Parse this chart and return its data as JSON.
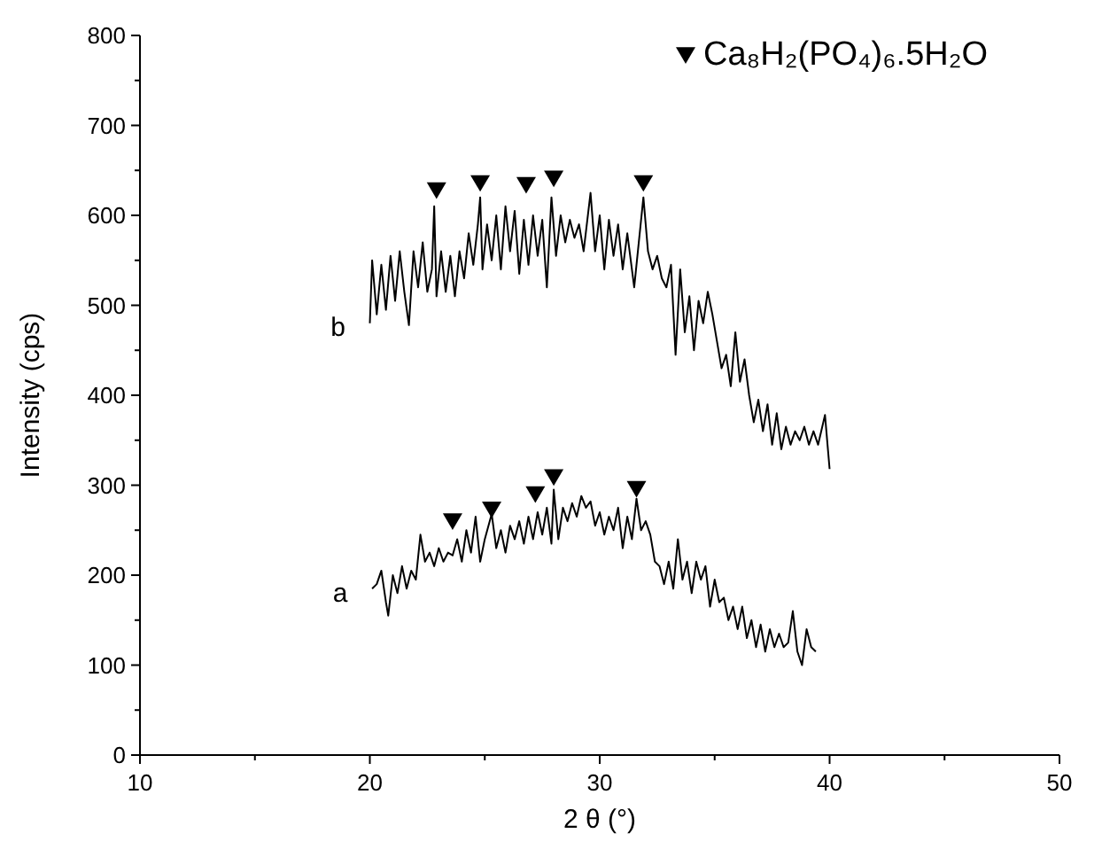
{
  "chart_data": {
    "type": "line",
    "xlabel": "2 θ (°)",
    "ylabel": "Intensity (cps)",
    "xlim": [
      10,
      50
    ],
    "ylim": [
      0,
      800
    ],
    "xticks": [
      10,
      {
        "value": 15,
        "label": null
      },
      20,
      {
        "value": 25,
        "label": null
      },
      30,
      {
        "value": 35,
        "label": null
      },
      40,
      {
        "value": 45,
        "label": null
      },
      50
    ],
    "yticks": [
      0,
      {
        "value": 50,
        "label": null
      },
      100,
      {
        "value": 150,
        "label": null
      },
      200,
      {
        "value": 250,
        "label": null
      },
      300,
      {
        "value": 350,
        "label": null
      },
      400,
      {
        "value": 450,
        "label": null
      },
      500,
      {
        "value": 550,
        "label": null
      },
      600,
      {
        "value": 650,
        "label": null
      },
      700,
      {
        "value": 750,
        "label": null
      },
      800
    ],
    "grid": false,
    "legend": "top right",
    "line_style": "solid",
    "annotations": [
      "b",
      "a"
    ],
    "series": [
      {
        "type": "line",
        "color": "#000000",
        "marker": "none",
        "x": [
          20,
          20.1,
          20.3,
          20.5,
          20.7,
          20.9,
          21.1,
          21.3,
          21.5,
          21.7,
          21.9,
          22.1,
          22.3,
          22.5,
          22.7,
          22.8,
          22.9,
          23.1,
          23.3,
          23.5,
          23.7,
          23.9,
          24.1,
          24.3,
          24.5,
          24.7,
          24.8,
          24.9,
          25.1,
          25.3,
          25.5,
          25.7,
          25.9,
          26.1,
          26.3,
          26.5,
          26.7,
          26.9,
          27.1,
          27.3,
          27.5,
          27.7,
          27.9,
          28.1,
          28.3,
          28.5,
          28.7,
          28.9,
          29.1,
          29.3,
          29.6,
          29.8,
          30,
          30.2,
          30.4,
          30.6,
          30.8,
          31,
          31.2,
          31.5,
          31.7,
          31.9,
          32.1,
          32.3,
          32.5,
          32.7,
          32.9,
          33.1,
          33.3,
          33.5,
          33.7,
          33.9,
          34.1,
          34.3,
          34.5,
          34.7,
          34.9,
          35.1,
          35.3,
          35.5,
          35.7,
          35.9,
          36.1,
          36.3,
          36.5,
          36.7,
          36.9,
          37.1,
          37.3,
          37.5,
          37.7,
          37.9,
          38.1,
          38.3,
          38.5,
          38.7,
          38.9,
          39.1,
          39.3,
          39.5,
          39.8,
          40
        ],
        "values": [
          480,
          550,
          490,
          545,
          495,
          555,
          505,
          560,
          515,
          478,
          560,
          520,
          570,
          515,
          540,
          610,
          510,
          560,
          515,
          555,
          510,
          560,
          530,
          580,
          545,
          590,
          620,
          540,
          590,
          550,
          600,
          540,
          610,
          560,
          605,
          535,
          595,
          545,
          600,
          555,
          595,
          520,
          620,
          555,
          600,
          570,
          595,
          575,
          590,
          560,
          625,
          560,
          600,
          540,
          595,
          555,
          590,
          540,
          580,
          520,
          570,
          620,
          560,
          540,
          555,
          530,
          520,
          545,
          445,
          540,
          470,
          510,
          450,
          505,
          480,
          515,
          490,
          460,
          430,
          445,
          410,
          470,
          415,
          440,
          400,
          370,
          395,
          360,
          390,
          345,
          380,
          340,
          365,
          345,
          360,
          350,
          365,
          345,
          360,
          345,
          378,
          318
        ]
      },
      {
        "color": "#000000",
        "marker": "none",
        "x": [
          20.1,
          20.3,
          20.5,
          20.7,
          20.8,
          21,
          21.2,
          21.4,
          21.6,
          21.8,
          22,
          22.2,
          22.4,
          22.6,
          22.8,
          23,
          23.2,
          23.4,
          23.6,
          23.8,
          24,
          24.2,
          24.4,
          24.6,
          24.8,
          25,
          25.3,
          25.5,
          25.7,
          25.9,
          26.1,
          26.3,
          26.5,
          26.7,
          26.9,
          27.1,
          27.3,
          27.5,
          27.7,
          27.9,
          28,
          28.2,
          28.4,
          28.6,
          28.8,
          29,
          29.2,
          29.4,
          29.6,
          29.8,
          30,
          30.2,
          30.4,
          30.6,
          30.8,
          31,
          31.2,
          31.4,
          31.6,
          31.8,
          32,
          32.2,
          32.4,
          32.6,
          32.8,
          33,
          33.2,
          33.4,
          33.6,
          33.8,
          34,
          34.2,
          34.4,
          34.6,
          34.8,
          35,
          35.2,
          35.4,
          35.6,
          35.8,
          36,
          36.2,
          36.4,
          36.6,
          36.8,
          37,
          37.2,
          37.4,
          37.6,
          37.8,
          38,
          38.2,
          38.4,
          38.6,
          38.8,
          39,
          39.2,
          39.4
        ],
        "values": [
          185,
          190,
          205,
          170,
          155,
          200,
          180,
          210,
          185,
          205,
          195,
          245,
          215,
          225,
          210,
          230,
          215,
          225,
          222,
          240,
          215,
          250,
          225,
          265,
          215,
          240,
          268,
          230,
          250,
          225,
          255,
          240,
          260,
          235,
          265,
          240,
          270,
          245,
          275,
          235,
          295,
          240,
          275,
          260,
          280,
          265,
          288,
          275,
          282,
          255,
          270,
          245,
          265,
          250,
          275,
          230,
          265,
          240,
          285,
          250,
          260,
          245,
          215,
          210,
          190,
          215,
          185,
          240,
          195,
          215,
          180,
          215,
          195,
          210,
          165,
          195,
          170,
          175,
          150,
          165,
          140,
          165,
          130,
          150,
          120,
          145,
          115,
          140,
          120,
          135,
          120,
          125,
          160,
          115,
          100,
          140,
          120,
          115
        ]
      },
      {
        "type": "scatter",
        "name": "Ca₈H₂(PO₄)₆.5H₂O",
        "color": "#000000",
        "marker": "triangle",
        "x": [
          22.9,
          24.8,
          26.8,
          28.0,
          31.9,
          23.6,
          25.3,
          27.2,
          28.0,
          31.6
        ],
        "values": [
          628,
          636,
          634,
          641,
          636,
          260,
          273,
          290,
          309,
          296
        ]
      }
    ]
  }
}
